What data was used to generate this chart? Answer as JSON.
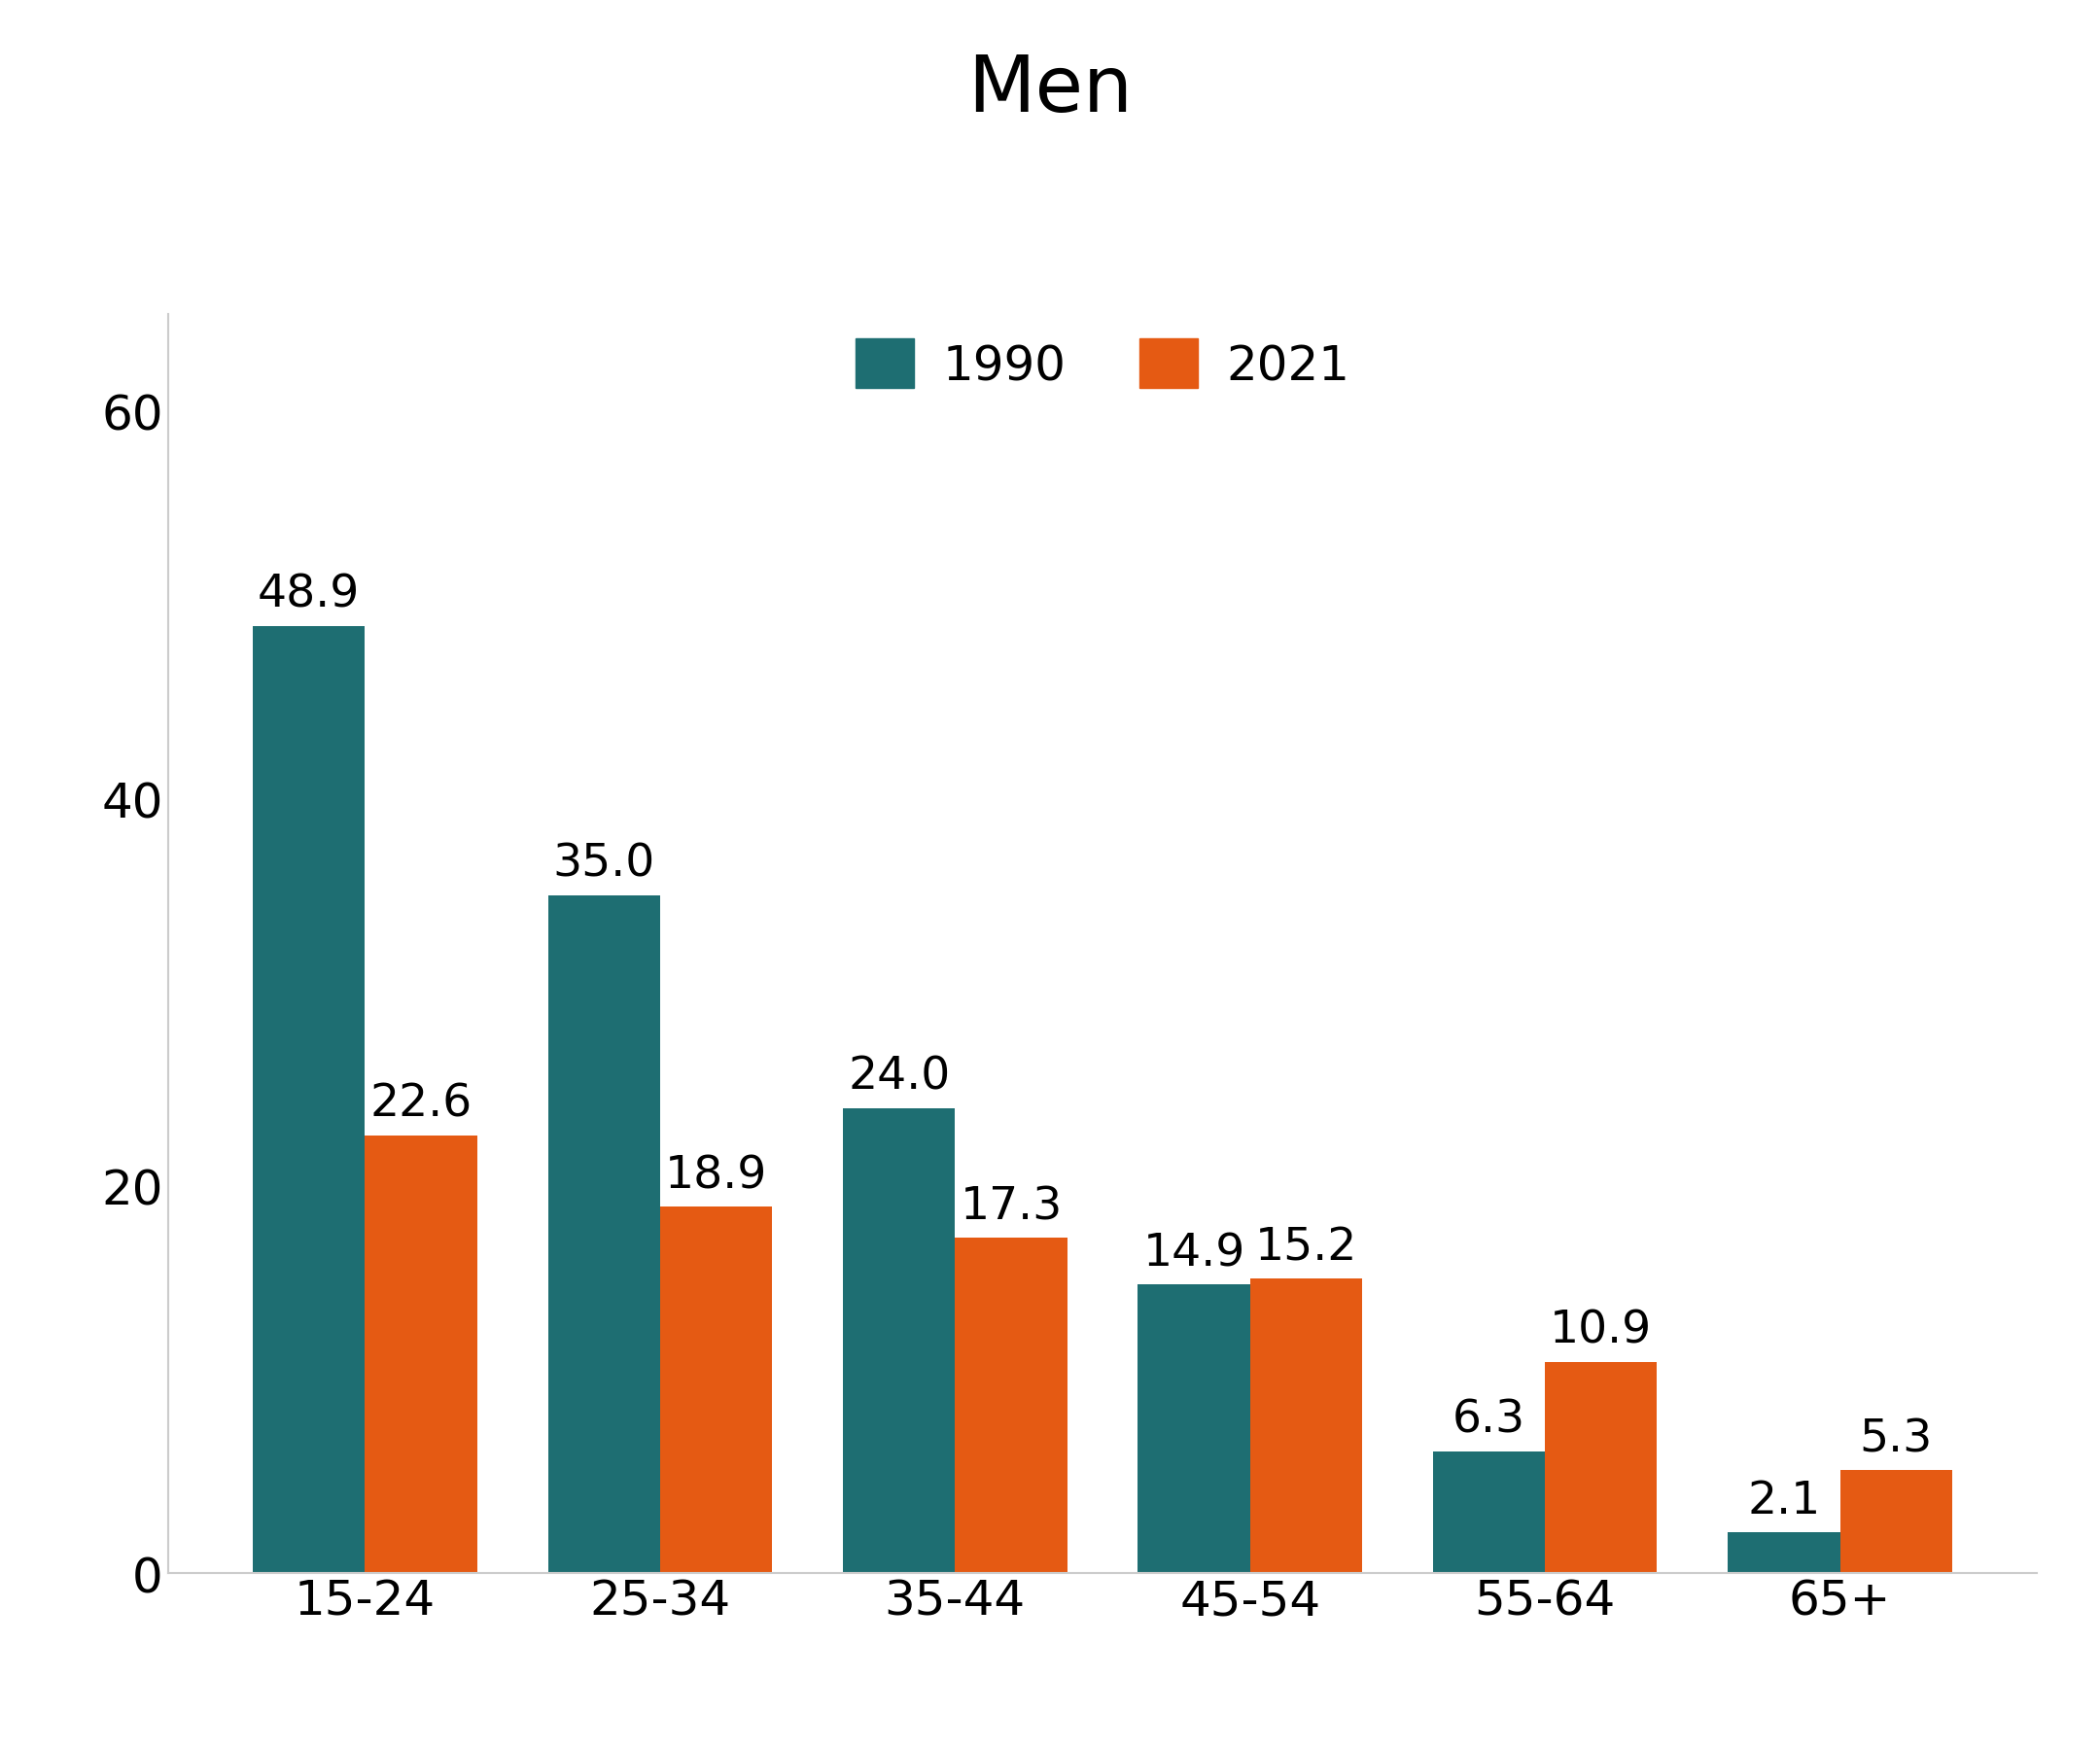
{
  "title": "Men",
  "categories": [
    "15-24",
    "25-34",
    "35-44",
    "45-54",
    "55-64",
    "65+"
  ],
  "values_1990": [
    48.9,
    35.0,
    24.0,
    14.9,
    6.3,
    2.1
  ],
  "values_2021": [
    22.6,
    18.9,
    17.3,
    15.2,
    10.9,
    5.3
  ],
  "color_1990": "#1e6e72",
  "color_2021": "#e55a13",
  "legend_labels": [
    "1990",
    "2021"
  ],
  "ylim": [
    0,
    65
  ],
  "yticks": [
    0,
    20,
    40,
    60
  ],
  "title_fontsize": 58,
  "tick_fontsize": 36,
  "label_fontsize": 34,
  "legend_fontsize": 36,
  "bar_width": 0.38,
  "background_color": "#ffffff"
}
